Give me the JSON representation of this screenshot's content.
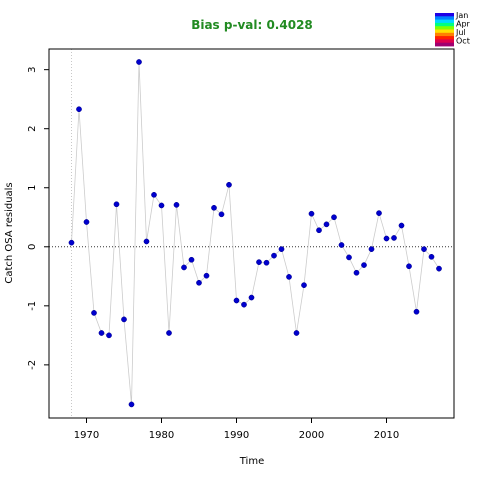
{
  "chart_data": {
    "type": "scatter",
    "title": "Bias p-val: 0.4028",
    "title_color": "#228B22",
    "xlabel": "Time",
    "ylabel": "Catch OSA residuals",
    "xlim": [
      1965,
      2019
    ],
    "ylim": [
      -2.9,
      3.35
    ],
    "x_ticks": [
      1970,
      1980,
      1990,
      2000,
      2010
    ],
    "y_ticks": [
      -2,
      -1,
      0,
      1,
      2,
      3
    ],
    "point_color": "#0000CD",
    "line_color": "#cccccc",
    "zero_line": 0,
    "vertical_ref_line": 1968,
    "legend_position": "top-right",
    "legend_labels": [
      "Jan",
      "Apr",
      "Jul",
      "Oct"
    ],
    "legend_colors": [
      "#1E00E6",
      "#0080FF",
      "#00D8FF",
      "#00FF80",
      "#80FF00",
      "#FFE000",
      "#FF8000",
      "#FF2000",
      "#E0004F",
      "#A00070"
    ],
    "series": [
      {
        "x": [
          1968,
          1969,
          1970,
          1971,
          1972,
          1973,
          1974,
          1975,
          1976,
          1977,
          1978,
          1979,
          1980,
          1981,
          1982,
          1983,
          1984,
          1985,
          1986,
          1987,
          1988,
          1989,
          1990,
          1991,
          1992,
          1993,
          1994,
          1995,
          1996,
          1997,
          1998,
          1999,
          2000,
          2001,
          2002,
          2003,
          2004,
          2005,
          2006,
          2007,
          2008,
          2009,
          2010,
          2011,
          2012,
          2013,
          2014,
          2015,
          2016,
          2017
        ],
        "y": [
          0.07,
          2.33,
          0.42,
          -1.12,
          -1.46,
          -1.5,
          0.72,
          -1.23,
          -2.67,
          3.13,
          0.09,
          0.88,
          0.7,
          -1.46,
          0.71,
          -0.35,
          -0.22,
          -0.61,
          -0.49,
          0.66,
          0.55,
          1.05,
          -0.91,
          -0.98,
          -0.86,
          -0.26,
          -0.27,
          -0.15,
          -0.04,
          -0.51,
          -1.46,
          -0.65,
          0.56,
          0.28,
          0.38,
          0.5,
          0.03,
          -0.18,
          -0.44,
          -0.31,
          -0.04,
          0.57,
          0.14,
          0.15,
          0.36,
          -0.33,
          -1.1,
          -0.04,
          -0.17,
          -0.37
        ]
      }
    ]
  }
}
